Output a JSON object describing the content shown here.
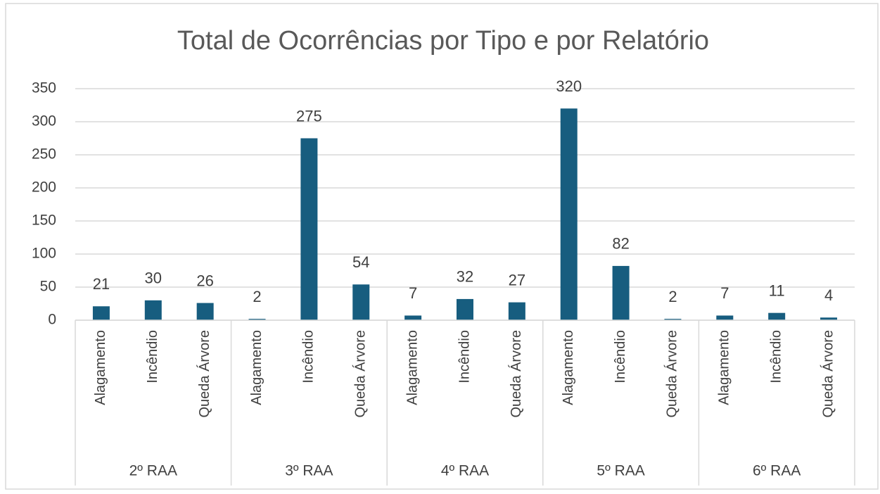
{
  "chart_data": {
    "type": "bar",
    "title": "Total de Ocorrências por Tipo e por Relatório",
    "groups": [
      {
        "name": "2º RAA",
        "categories": [
          "Alagamento",
          "Incêndio",
          "Queda Árvore"
        ],
        "values": [
          21,
          30,
          26
        ]
      },
      {
        "name": "3º RAA",
        "categories": [
          "Alagamento",
          "Incêndio",
          "Queda Árvore"
        ],
        "values": [
          2,
          275,
          54
        ]
      },
      {
        "name": "4º RAA",
        "categories": [
          "Alagamento",
          "Incêndio",
          "Queda Árvore"
        ],
        "values": [
          7,
          32,
          27
        ]
      },
      {
        "name": "5º RAA",
        "categories": [
          "Alagamento",
          "Incêndio",
          "Queda Árvore"
        ],
        "values": [
          320,
          82,
          2
        ]
      },
      {
        "name": "6º RAA",
        "categories": [
          "Alagamento",
          "Incêndio",
          "Queda Árvore"
        ],
        "values": [
          7,
          11,
          4
        ]
      }
    ],
    "color": "#175d7f",
    "ylim": [
      0,
      350
    ],
    "yticks": [
      0,
      50,
      100,
      150,
      200,
      250,
      300,
      350
    ],
    "grid": true
  }
}
